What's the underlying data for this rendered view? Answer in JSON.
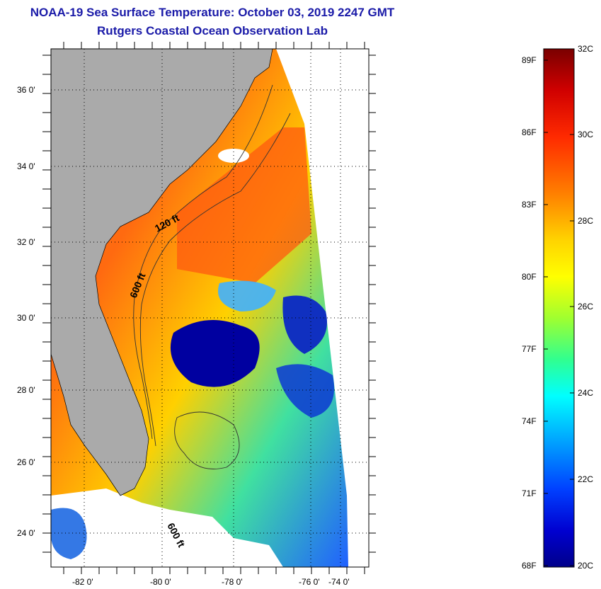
{
  "title": {
    "line1": "NOAA-19 Sea Surface Temperature:  October 03, 2019 2247 GMT",
    "line2": "Rutgers Coastal Ocean Observation Lab"
  },
  "map": {
    "lat_labels": [
      "36 0'",
      "34 0'",
      "32 0'",
      "30 0'",
      "28 0'",
      "26 0'",
      "24 0'"
    ],
    "lon_labels": [
      "-82 0'",
      "-80 0'",
      "-78 0'",
      "-76 0'",
      "-74 0'"
    ],
    "contour_labels": [
      "120 ft",
      "600 ft",
      "600 ft"
    ],
    "colors": {
      "land": "#aaaaaa",
      "frame": "#000000",
      "cloud": "#ffffff"
    }
  },
  "colorbar": {
    "fahrenheit": [
      "89F",
      "86F",
      "83F",
      "80F",
      "77F",
      "74F",
      "71F",
      "68F"
    ],
    "celsius": [
      "32C",
      "30C",
      "28C",
      "26C",
      "24C",
      "22C",
      "20C"
    ],
    "stops": [
      "#7a0000",
      "#d00000",
      "#ff2a00",
      "#ff8000",
      "#ffd400",
      "#ffff00",
      "#9fff30",
      "#30ff90",
      "#00ffff",
      "#00a0ff",
      "#0040ff",
      "#0000d0",
      "#00008a"
    ]
  }
}
